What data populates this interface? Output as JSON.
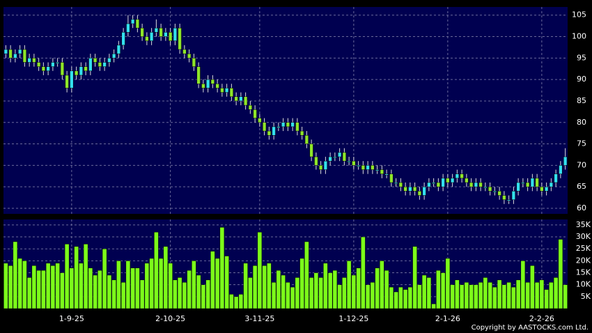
{
  "chart_data": {
    "type": "candlestick",
    "copyright": "Copyright by AASTOCKS.com Ltd.",
    "up_color": "#33e0f0",
    "down_color": "#8ee62a",
    "volume_color": "#7cfc1a",
    "grid": true,
    "xlim": [
      -0.5,
      119.5
    ],
    "xticks": [
      {
        "value": 14,
        "label": "1-9-25"
      },
      {
        "value": 35,
        "label": "2-10-25"
      },
      {
        "value": 54,
        "label": "3-11-25"
      },
      {
        "value": 74,
        "label": "1-12-25"
      },
      {
        "value": 94,
        "label": "2-1-26"
      },
      {
        "value": 114,
        "label": "2-2-26"
      }
    ],
    "ylim": [
      58.7,
      106.9
    ],
    "yticks": [
      60,
      65,
      70,
      75,
      80,
      85,
      90,
      95,
      100,
      105
    ],
    "y2lim": [
      0,
      37300
    ],
    "y2ticks": [
      {
        "value": 5000,
        "label": "5K"
      },
      {
        "value": 10000,
        "label": "10K"
      },
      {
        "value": 15000,
        "label": "15K"
      },
      {
        "value": 20000,
        "label": "20K"
      },
      {
        "value": 25000,
        "label": "25K"
      },
      {
        "value": 30000,
        "label": "30K"
      },
      {
        "value": 35000,
        "label": "35K"
      }
    ],
    "open": [
      96,
      97,
      95,
      96,
      97,
      94,
      95,
      94,
      93,
      92,
      93,
      94,
      94,
      91,
      88,
      92,
      91,
      93,
      92,
      95,
      94,
      93,
      94,
      95,
      96,
      98,
      101,
      103,
      104,
      102,
      100,
      99,
      101,
      102,
      100,
      101,
      99,
      102,
      97,
      96,
      95,
      93,
      89,
      88,
      90,
      89,
      88,
      87,
      88,
      86,
      85,
      86,
      84,
      83,
      81,
      80,
      78,
      77,
      79,
      79,
      80,
      79,
      80,
      78,
      77,
      75,
      72,
      70,
      69,
      71,
      72,
      72,
      73,
      71,
      71,
      70,
      70,
      69,
      70,
      69,
      69,
      68,
      68,
      66,
      66,
      65,
      64,
      65,
      64,
      63,
      65,
      66,
      66,
      65,
      67,
      66,
      67,
      68,
      67,
      66,
      65,
      66,
      65,
      65,
      64,
      64,
      63,
      62,
      62,
      64,
      66,
      66,
      65,
      67,
      65,
      64,
      65,
      66,
      68,
      70
    ],
    "high": [
      98,
      98,
      97,
      98,
      98,
      96,
      96,
      95,
      94,
      94,
      95,
      95,
      95,
      92,
      93,
      93,
      94,
      94,
      96,
      96,
      95,
      95,
      96,
      97,
      99,
      102,
      105,
      105,
      105,
      103,
      101,
      102,
      104,
      103,
      102,
      102,
      103,
      103,
      98,
      97,
      96,
      94,
      90,
      91,
      91,
      90,
      89,
      89,
      89,
      87,
      87,
      87,
      85,
      84,
      82,
      81,
      79,
      80,
      80,
      81,
      81,
      81,
      81,
      79,
      78,
      76,
      73,
      71,
      72,
      73,
      73,
      74,
      74,
      72,
      72,
      71,
      71,
      71,
      71,
      70,
      70,
      69,
      69,
      67,
      67,
      66,
      66,
      66,
      65,
      66,
      67,
      67,
      67,
      68,
      68,
      68,
      69,
      69,
      68,
      67,
      67,
      67,
      66,
      66,
      65,
      65,
      64,
      63,
      65,
      67,
      67,
      67,
      68,
      68,
      66,
      66,
      67,
      69,
      71,
      74
    ],
    "low": [
      95,
      94,
      94,
      95,
      93,
      93,
      93,
      92,
      91,
      91,
      92,
      93,
      90,
      87,
      87,
      90,
      90,
      91,
      91,
      93,
      92,
      92,
      93,
      94,
      95,
      97,
      100,
      102,
      101,
      99,
      98,
      98,
      100,
      99,
      99,
      98,
      98,
      96,
      95,
      94,
      92,
      88,
      87,
      87,
      88,
      87,
      86,
      86,
      85,
      84,
      84,
      83,
      82,
      80,
      79,
      77,
      76,
      76,
      78,
      78,
      78,
      78,
      77,
      76,
      74,
      71,
      69,
      68,
      68,
      70,
      71,
      71,
      70,
      70,
      69,
      69,
      68,
      68,
      68,
      68,
      67,
      67,
      65,
      65,
      64,
      63,
      63,
      63,
      62,
      62,
      64,
      65,
      64,
      64,
      65,
      65,
      66,
      66,
      65,
      64,
      64,
      64,
      64,
      63,
      63,
      62,
      61,
      61,
      61,
      63,
      65,
      64,
      64,
      64,
      63,
      63,
      64,
      65,
      67,
      69
    ],
    "close": [
      97,
      95,
      96,
      97,
      94,
      95,
      94,
      93,
      92,
      93,
      94,
      94,
      91,
      88,
      92,
      91,
      93,
      92,
      95,
      94,
      93,
      94,
      95,
      96,
      98,
      101,
      103,
      104,
      102,
      100,
      99,
      101,
      102,
      100,
      101,
      99,
      102,
      97,
      96,
      95,
      93,
      89,
      88,
      90,
      89,
      88,
      87,
      88,
      86,
      85,
      86,
      84,
      83,
      81,
      80,
      78,
      77,
      79,
      79,
      80,
      79,
      80,
      78,
      77,
      75,
      72,
      70,
      69,
      71,
      72,
      72,
      73,
      71,
      71,
      70,
      70,
      69,
      70,
      69,
      69,
      68,
      68,
      66,
      66,
      65,
      64,
      65,
      64,
      63,
      65,
      66,
      66,
      65,
      67,
      66,
      67,
      68,
      67,
      66,
      65,
      66,
      65,
      65,
      64,
      64,
      63,
      62,
      62,
      64,
      66,
      66,
      65,
      67,
      65,
      64,
      65,
      66,
      68,
      70,
      72
    ],
    "volume": [
      19000,
      18000,
      28000,
      21000,
      20000,
      13000,
      18000,
      16000,
      16000,
      19000,
      18000,
      19000,
      15000,
      27000,
      17000,
      26000,
      19000,
      27000,
      17000,
      14000,
      16000,
      25000,
      14000,
      12000,
      20000,
      11000,
      20000,
      17000,
      17000,
      12000,
      19000,
      21000,
      32000,
      21000,
      26000,
      19000,
      12000,
      13000,
      11000,
      16000,
      20000,
      14000,
      10000,
      12000,
      24000,
      21000,
      34000,
      22000,
      6000,
      5000,
      6000,
      19000,
      13000,
      18000,
      32000,
      18000,
      19000,
      11000,
      16000,
      14000,
      11000,
      9000,
      13000,
      21000,
      28000,
      13000,
      15000,
      13000,
      19000,
      15000,
      16000,
      10000,
      13000,
      20000,
      14000,
      17000,
      30000,
      10000,
      11000,
      17000,
      20000,
      16000,
      9000,
      7000,
      9000,
      8000,
      9000,
      26000,
      10000,
      14000,
      13000,
      2000,
      16000,
      15000,
      21000,
      10000,
      12000,
      10000,
      11000,
      10000,
      10000,
      11000,
      13000,
      11000,
      9000,
      12000,
      10000,
      11000,
      9000,
      12000,
      20000,
      11000,
      18000,
      11000,
      12000,
      8000,
      11000,
      13000,
      29000,
      10000
    ]
  }
}
